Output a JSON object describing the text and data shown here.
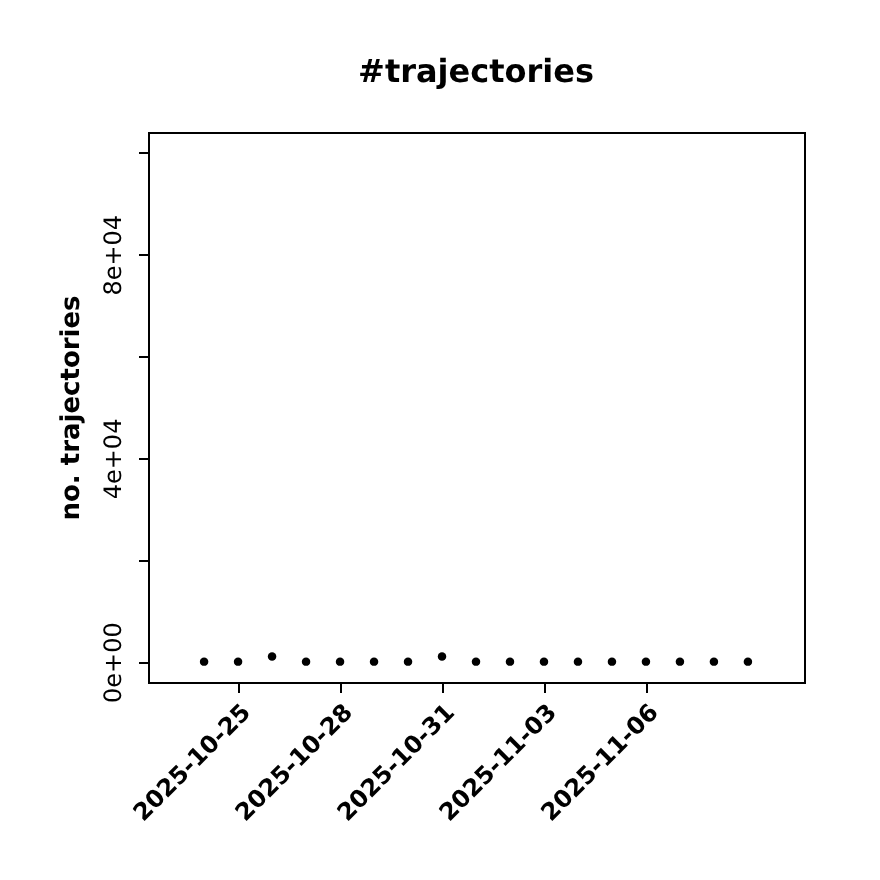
{
  "chart_data": {
    "type": "scatter",
    "title": "#trajectories",
    "ylabel": "no. trajectories",
    "x": [
      "2025-10-24",
      "2025-10-25",
      "2025-10-26",
      "2025-10-27",
      "2025-10-28",
      "2025-10-29",
      "2025-10-30",
      "2025-10-31",
      "2025-11-01",
      "2025-11-02",
      "2025-11-03",
      "2025-11-04",
      "2025-11-05",
      "2025-11-06",
      "2025-11-07",
      "2025-11-08",
      "2025-11-09"
    ],
    "series": [
      {
        "color": "#000000",
        "values": [
          0,
          0,
          1000,
          0,
          0,
          0,
          0,
          1000,
          0,
          0,
          0,
          0,
          0,
          0,
          0,
          0,
          0
        ]
      }
    ],
    "xlim": [
      "2025-10-22T08:24",
      "2025-11-10T15:36"
    ],
    "xticks": [
      "2025-10-25",
      "2025-10-28",
      "2025-10-31",
      "2025-11-03",
      "2025-11-06"
    ],
    "ylim": [
      -4000,
      104000
    ],
    "yticks": [
      {
        "value": 0,
        "label": "0e+00"
      },
      {
        "value": 20000,
        "label": null
      },
      {
        "value": 40000,
        "label": "4e+04"
      },
      {
        "value": 60000,
        "label": null
      },
      {
        "value": 80000,
        "label": "8e+04"
      },
      {
        "value": 100000,
        "label": null
      }
    ],
    "marker": "circle",
    "grid": false,
    "legend": false
  }
}
